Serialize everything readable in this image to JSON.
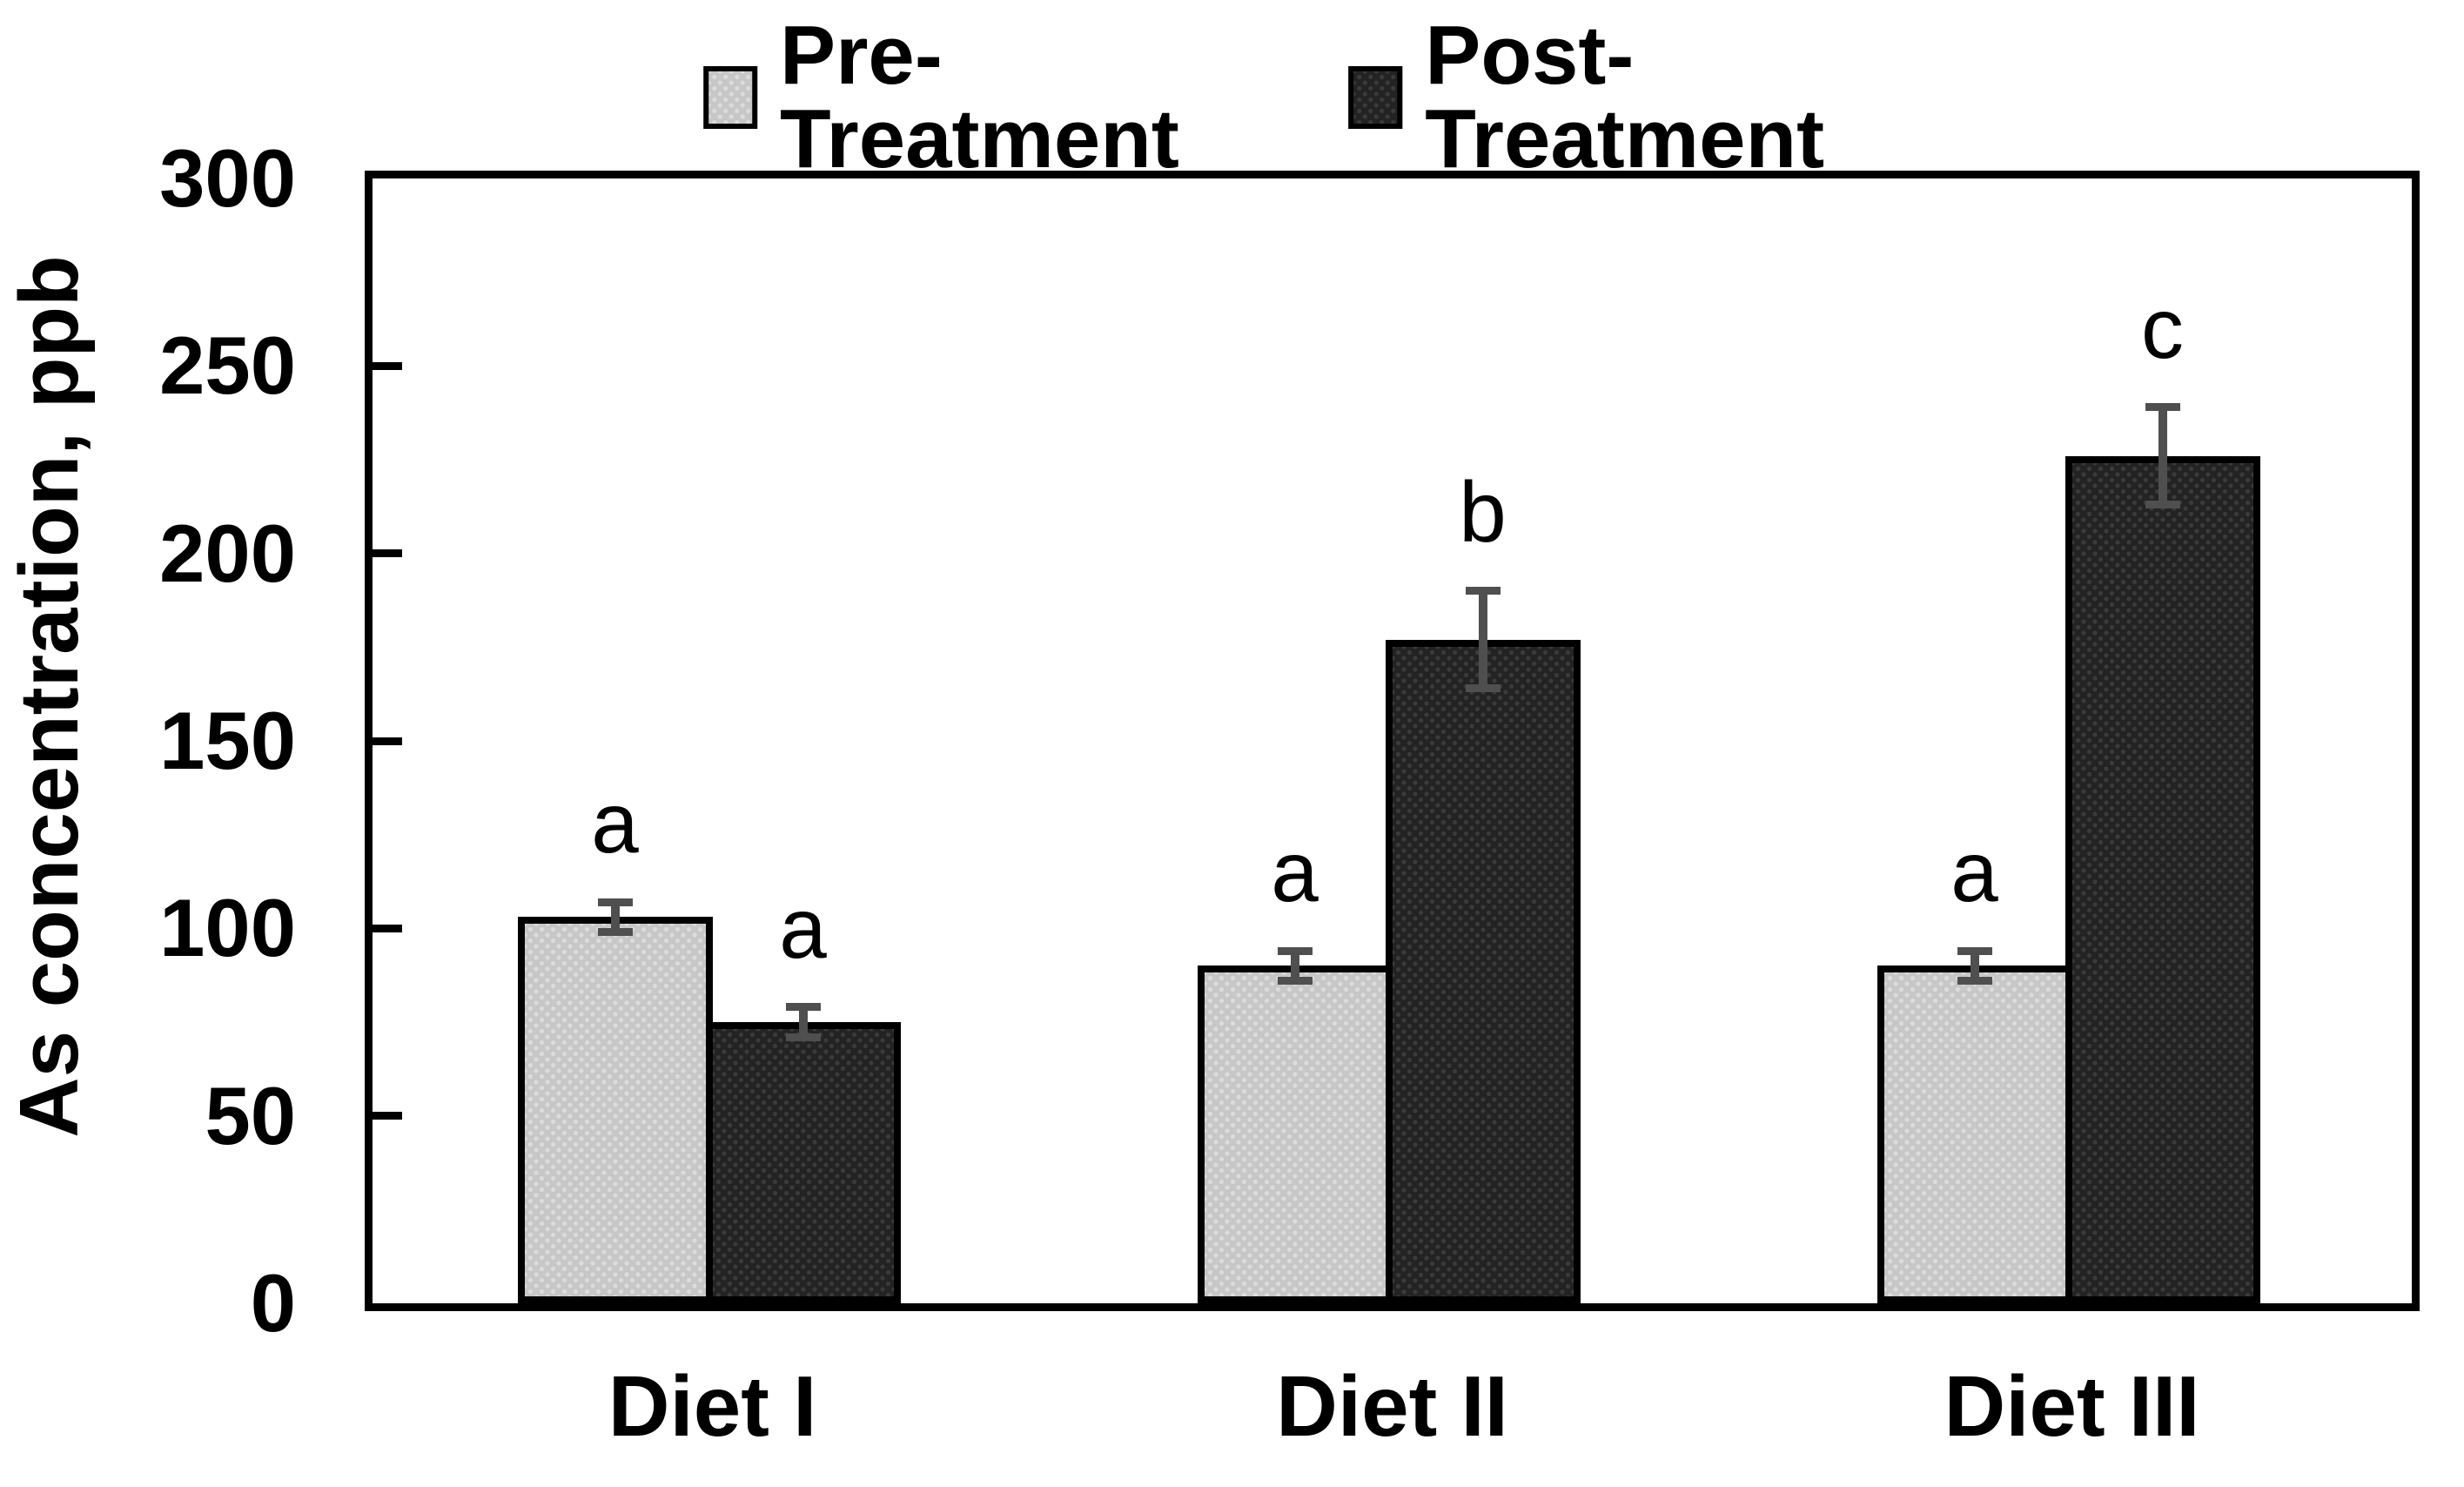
{
  "chart_data": {
    "type": "bar",
    "title": "",
    "categories": [
      "Diet I",
      "Diet II",
      "Diet III"
    ],
    "series": [
      {
        "name": "Pre-Treatment",
        "values": [
          103,
          90,
          90
        ],
        "errors": [
          4,
          4,
          4
        ],
        "letters": [
          "a",
          "a",
          "a"
        ],
        "fill": "#c7c7c7",
        "dot": "#dcdcdc"
      },
      {
        "name": "Post-Treatment",
        "values": [
          75,
          177,
          226
        ],
        "errors": [
          4,
          13,
          13
        ],
        "letters": [
          "a",
          "b",
          "c"
        ],
        "fill": "#232323",
        "dot": "#3b3b3b"
      }
    ],
    "xlabel": "",
    "ylabel": "As concentration, ppb",
    "ylim": [
      0,
      300
    ],
    "yticks": [
      0,
      50,
      100,
      150,
      200,
      250,
      300
    ],
    "legend_position": "top",
    "grid": false,
    "bar_outline_color": "#000000",
    "error_bar_color": "#4f4f4f",
    "axis_color": "#000000"
  },
  "legend": {
    "items": [
      "Pre-Treatment",
      "Post-Treatment"
    ]
  },
  "y_axis": {
    "label": "As concentration, ppb",
    "tick_labels": [
      "0",
      "50",
      "100",
      "150",
      "200",
      "250",
      "300"
    ]
  },
  "x_axis": {
    "labels": [
      "Diet I",
      "Diet II",
      "Diet III"
    ]
  }
}
